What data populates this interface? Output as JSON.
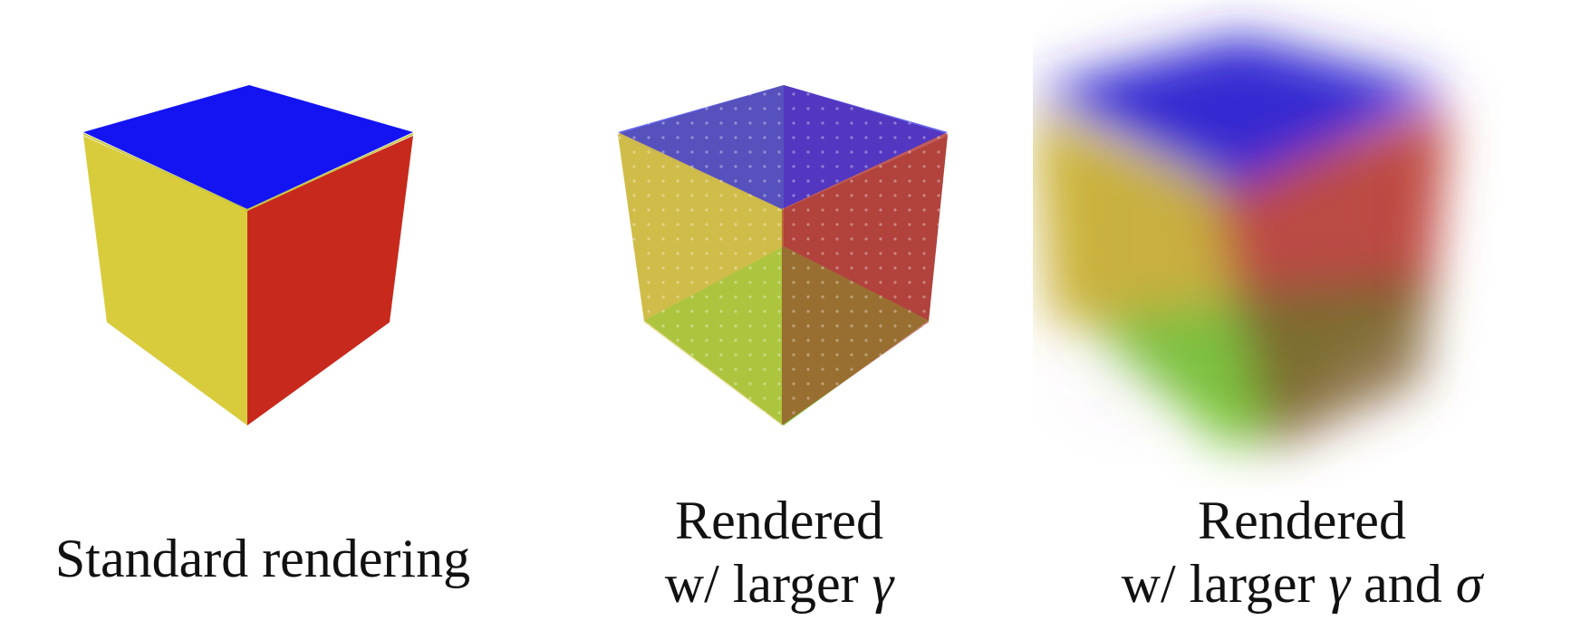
{
  "panels": [
    {
      "caption_line1": "Standard rendering"
    },
    {
      "caption_line1": "Rendered",
      "caption_line2_prefix": "w/ larger ",
      "symbol1": "γ"
    },
    {
      "caption_line1": "Rendered",
      "caption_line2_prefix": "w/ larger ",
      "symbol1": "γ",
      "connector": " and ",
      "symbol2": "σ"
    }
  ],
  "colors": {
    "top": "#1f1ef0",
    "left": "#d9cc3a",
    "right": "#cc2a1e",
    "bottom": "#7fcf3a"
  }
}
